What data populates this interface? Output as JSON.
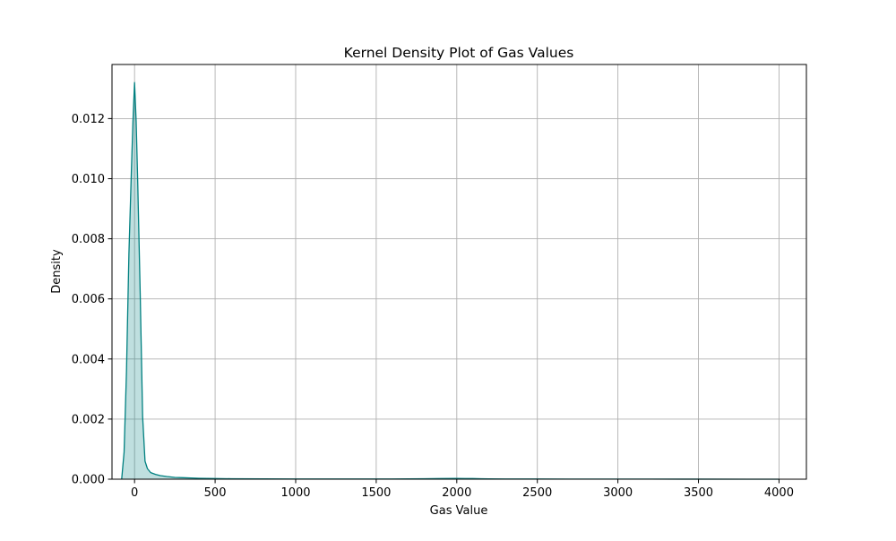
{
  "chart_data": {
    "type": "area",
    "title": "Kernel Density Plot of Gas Values",
    "xlabel": "Gas Value",
    "ylabel": "Density",
    "xlim": [
      -140,
      4170
    ],
    "ylim": [
      0,
      0.0138
    ],
    "xticks": [
      0,
      500,
      1000,
      1500,
      2000,
      2500,
      3000,
      3500,
      4000
    ],
    "xtick_labels": [
      "0",
      "500",
      "1000",
      "1500",
      "2000",
      "2500",
      "3000",
      "3500",
      "4000"
    ],
    "yticks": [
      0,
      0.002,
      0.004,
      0.006,
      0.008,
      0.01,
      0.012
    ],
    "ytick_labels": [
      "0.000",
      "0.002",
      "0.004",
      "0.006",
      "0.008",
      "0.010",
      "0.012"
    ],
    "grid": true,
    "line_color": "#008080",
    "fill_color": "#008080",
    "fill_opacity": 0.25,
    "series": [
      {
        "x": [
          -80,
          -65,
          -50,
          -35,
          -20,
          -10,
          0,
          10,
          20,
          35,
          50,
          65,
          80,
          100,
          130,
          160,
          200,
          250,
          300,
          350,
          400,
          500,
          600,
          800,
          1000,
          1200,
          1400,
          1600,
          1800,
          1900,
          2000,
          2050,
          2100,
          2150,
          2200,
          2300,
          2500,
          2800,
          3000,
          3200,
          3500,
          3800,
          4000
        ],
        "y": [
          0,
          0.0009,
          0.0036,
          0.0075,
          0.0102,
          0.0119,
          0.0132,
          0.0119,
          0.0098,
          0.0062,
          0.0021,
          0.0006,
          0.00035,
          0.00022,
          0.00016,
          0.00012,
          9e-05,
          6e-05,
          5e-05,
          4e-05,
          3e-05,
          2e-05,
          1.5e-05,
          1e-05,
          8e-06,
          6e-06,
          5e-06,
          8e-06,
          1.5e-05,
          2e-05,
          2.5e-05,
          2e-05,
          2.2e-05,
          1.5e-05,
          1e-05,
          8e-06,
          5e-06,
          4e-06,
          3e-06,
          3e-06,
          2e-06,
          1e-06,
          0
        ]
      }
    ]
  }
}
